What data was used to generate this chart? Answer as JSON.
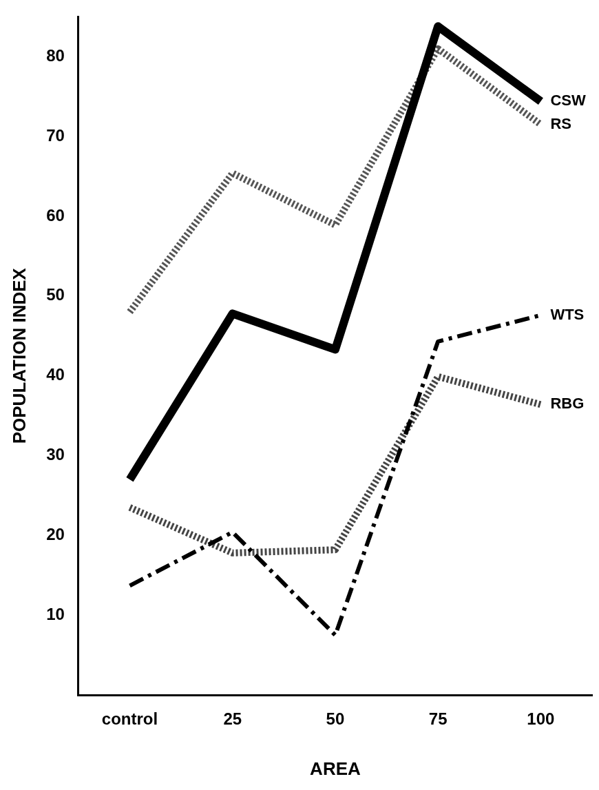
{
  "chart_data": {
    "type": "line",
    "xlabel": "AREA",
    "ylabel": "POPULATION INDEX",
    "categories": [
      "control",
      "25",
      "50",
      "75",
      "100"
    ],
    "ylim": [
      0,
      85
    ],
    "yticks": [
      10,
      20,
      30,
      40,
      50,
      60,
      70,
      80
    ],
    "grid": false,
    "legend": false,
    "marker": "none",
    "series": [
      {
        "name": "CSW",
        "color": "#000000",
        "line_style": "solid",
        "values": [
          27,
          47.8,
          43.3,
          83.8,
          74.4
        ]
      },
      {
        "name": "RS",
        "color": "#555555",
        "line_style": "dotted",
        "values": [
          48,
          65.4,
          58.9,
          81,
          71.5
        ]
      },
      {
        "name": "WTS",
        "color": "#000000",
        "line_style": "dashed",
        "values": [
          13.7,
          20.4,
          7.5,
          44.3,
          47.6
        ]
      },
      {
        "name": "RBG",
        "color": "#444444",
        "line_style": "dotted",
        "values": [
          23.5,
          17.8,
          18.2,
          39.9,
          36.4
        ]
      }
    ]
  }
}
